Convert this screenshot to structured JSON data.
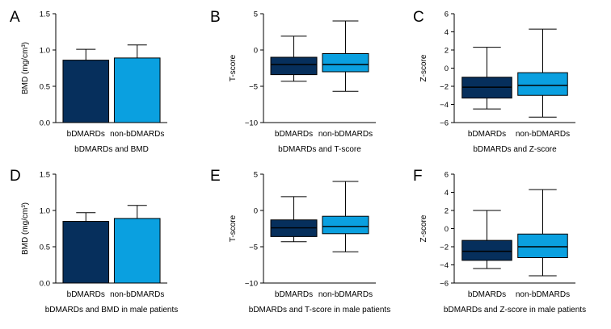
{
  "colors": {
    "dark": "#062f5c",
    "light": "#0aa0e0",
    "axis": "#000000"
  },
  "chart_data": [
    {
      "letter": "A",
      "type": "bar",
      "title": "bDMARDs and BMD",
      "ylabel": "BMD (mg/cm³)",
      "ylim": [
        0,
        1.5
      ],
      "yticks": [
        "0.0",
        "0.5",
        "1.0",
        "1.5"
      ],
      "categories": [
        "bDMARDs",
        "non-bDMARDs"
      ],
      "values": [
        0.86,
        0.89
      ],
      "errors": [
        0.15,
        0.18
      ]
    },
    {
      "letter": "B",
      "type": "box",
      "title": "bDMARDs and T-score",
      "ylabel": "T-score",
      "ylim": [
        -10,
        5
      ],
      "yticks": [
        "−10",
        "−5",
        "0",
        "5"
      ],
      "categories": [
        "bDMARDs",
        "non-bDMARDs"
      ],
      "boxes": [
        {
          "min": -4.3,
          "q1": -3.4,
          "median": -2.0,
          "q3": -1.0,
          "max": 1.9
        },
        {
          "min": -5.7,
          "q1": -3.0,
          "median": -2.0,
          "q3": -0.5,
          "max": 4.0
        }
      ]
    },
    {
      "letter": "C",
      "type": "box",
      "title": "bDMARDs and Z-score",
      "ylabel": "Z-score",
      "ylim": [
        -6,
        6
      ],
      "yticks": [
        "−6",
        "−4",
        "−2",
        "0",
        "2",
        "4",
        "6"
      ],
      "categories": [
        "bDMARDs",
        "non-bDMARDs"
      ],
      "boxes": [
        {
          "min": -4.5,
          "q1": -3.3,
          "median": -2.1,
          "q3": -1.0,
          "max": 2.3
        },
        {
          "min": -5.4,
          "q1": -3.0,
          "median": -1.9,
          "q3": -0.5,
          "max": 4.3
        }
      ]
    },
    {
      "letter": "D",
      "type": "bar",
      "title": "bDMARDs and BMD in male patients",
      "ylabel": "BMD (mg/cm³)",
      "ylim": [
        0,
        1.5
      ],
      "yticks": [
        "0.0",
        "0.5",
        "1.0",
        "1.5"
      ],
      "categories": [
        "bDMARDs",
        "non-bDMARDs"
      ],
      "values": [
        0.85,
        0.89
      ],
      "errors": [
        0.12,
        0.18
      ]
    },
    {
      "letter": "E",
      "type": "box",
      "title": "bDMARDs and T-score in male patients",
      "ylabel": "T-score",
      "ylim": [
        -10,
        5
      ],
      "yticks": [
        "−10",
        "−5",
        "0",
        "5"
      ],
      "categories": [
        "bDMARDs",
        "non-bDMARDs"
      ],
      "boxes": [
        {
          "min": -4.3,
          "q1": -3.6,
          "median": -2.4,
          "q3": -1.3,
          "max": 1.9
        },
        {
          "min": -5.7,
          "q1": -3.2,
          "median": -2.2,
          "q3": -0.8,
          "max": 4.0
        }
      ]
    },
    {
      "letter": "F",
      "type": "box",
      "title": "bDMARDs and Z-score in male patients",
      "ylabel": "Z-score",
      "ylim": [
        -6,
        6
      ],
      "yticks": [
        "−6",
        "−4",
        "−2",
        "0",
        "2",
        "4",
        "6"
      ],
      "categories": [
        "bDMARDs",
        "non-bDMARDs"
      ],
      "boxes": [
        {
          "min": -4.4,
          "q1": -3.5,
          "median": -2.5,
          "q3": -1.3,
          "max": 2.0
        },
        {
          "min": -5.2,
          "q1": -3.2,
          "median": -2.0,
          "q3": -0.6,
          "max": 4.3
        }
      ]
    }
  ]
}
